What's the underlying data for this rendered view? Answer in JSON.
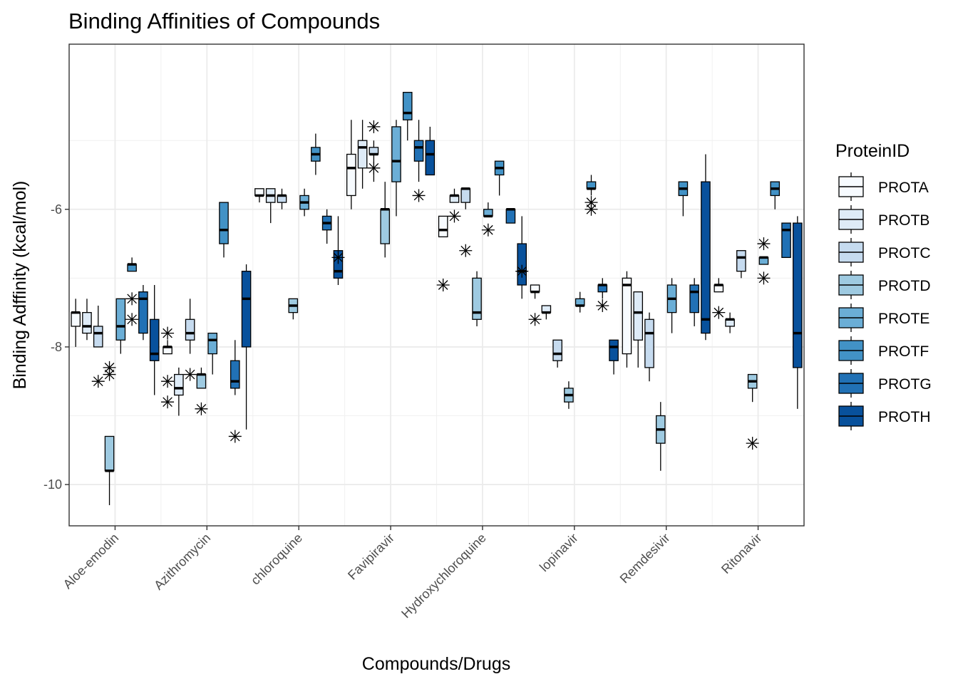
{
  "chart_data": {
    "type": "boxplot",
    "title": "Binding Affinities of Compounds",
    "xlabel": "Compounds/Drugs",
    "ylabel": "Binding Adffinity (kcal/mol)",
    "ylim": [
      -10.6,
      -3.6
    ],
    "yticks": [
      -10,
      -8,
      -6
    ],
    "grid": true,
    "legend": {
      "title": "ProteinID",
      "placement": "right",
      "entries": [
        "PROTA",
        "PROTB",
        "PROTC",
        "PROTD",
        "PROTE",
        "PROTF",
        "PROTG",
        "PROTH"
      ]
    },
    "colors": [
      "#f7fbff",
      "#deebf7",
      "#c6dbef",
      "#9ecae1",
      "#6baed6",
      "#4292c6",
      "#2171b5",
      "#08519c"
    ],
    "categories": [
      "Aloe-emodin",
      "Azithromycin",
      "chloroquine",
      "Favipiravir",
      "Hydroxychloroquine",
      "lopinavir",
      "Remdesivir",
      "Ritonavir"
    ],
    "boxes": [
      [
        {
          "min": -8.0,
          "q1": -7.7,
          "median": -7.5,
          "q3": -7.5,
          "max": -7.3,
          "outliers": []
        },
        {
          "min": -7.9,
          "q1": -7.8,
          "median": -7.7,
          "q3": -7.5,
          "max": -7.3,
          "outliers": []
        },
        {
          "min": -8.0,
          "q1": -8.0,
          "median": -7.8,
          "q3": -7.7,
          "max": -7.4,
          "outliers": [
            -8.5
          ]
        },
        {
          "min": -10.3,
          "q1": -9.8,
          "median": -9.8,
          "q3": -9.3,
          "max": -9.3,
          "outliers": [
            -8.3,
            -8.4
          ]
        },
        {
          "min": -8.1,
          "q1": -7.9,
          "median": -7.7,
          "q3": -7.3,
          "max": -7.3,
          "outliers": []
        },
        {
          "min": -6.9,
          "q1": -6.9,
          "median": -6.8,
          "q3": -6.8,
          "max": -6.7,
          "outliers": [
            -7.3,
            -7.6
          ]
        },
        {
          "min": -7.9,
          "q1": -7.8,
          "median": -7.3,
          "q3": -7.2,
          "max": -7.1,
          "outliers": []
        },
        {
          "min": -8.7,
          "q1": -8.2,
          "median": -8.1,
          "q3": -7.6,
          "max": -7.1,
          "outliers": []
        }
      ],
      [
        {
          "min": -8.1,
          "q1": -8.1,
          "median": -8.0,
          "q3": -8.0,
          "max": -7.9,
          "outliers": [
            -8.8,
            -8.5,
            -7.8
          ]
        },
        {
          "min": -9.0,
          "q1": -8.7,
          "median": -8.6,
          "q3": -8.4,
          "max": -8.3,
          "outliers": []
        },
        {
          "min": -8.1,
          "q1": -7.9,
          "median": -7.8,
          "q3": -7.6,
          "max": -7.3,
          "outliers": [
            -8.4
          ]
        },
        {
          "min": -8.6,
          "q1": -8.6,
          "median": -8.4,
          "q3": -8.4,
          "max": -8.3,
          "outliers": [
            -8.9
          ]
        },
        {
          "min": -8.4,
          "q1": -8.1,
          "median": -7.9,
          "q3": -7.8,
          "max": -7.8,
          "outliers": []
        },
        {
          "min": -6.7,
          "q1": -6.5,
          "median": -6.3,
          "q3": -5.9,
          "max": -5.9,
          "outliers": []
        },
        {
          "min": -8.7,
          "q1": -8.6,
          "median": -8.5,
          "q3": -8.2,
          "max": -7.9,
          "outliers": [
            -9.3
          ]
        },
        {
          "min": -9.2,
          "q1": -8.0,
          "median": -7.3,
          "q3": -6.9,
          "max": -6.8,
          "outliers": []
        }
      ],
      [
        {
          "min": -5.9,
          "q1": -5.8,
          "median": -5.8,
          "q3": -5.7,
          "max": -5.7,
          "outliers": []
        },
        {
          "min": -6.2,
          "q1": -5.9,
          "median": -5.8,
          "q3": -5.7,
          "max": -5.7,
          "outliers": []
        },
        {
          "min": -6.0,
          "q1": -5.9,
          "median": -5.8,
          "q3": -5.8,
          "max": -5.7,
          "outliers": []
        },
        {
          "min": -7.6,
          "q1": -7.5,
          "median": -7.4,
          "q3": -7.3,
          "max": -7.3,
          "outliers": []
        },
        {
          "min": -6.1,
          "q1": -6.0,
          "median": -5.9,
          "q3": -5.8,
          "max": -5.7,
          "outliers": []
        },
        {
          "min": -5.5,
          "q1": -5.3,
          "median": -5.2,
          "q3": -5.1,
          "max": -4.9,
          "outliers": []
        },
        {
          "min": -6.5,
          "q1": -6.3,
          "median": -6.2,
          "q3": -6.1,
          "max": -6.0,
          "outliers": []
        },
        {
          "min": -7.1,
          "q1": -7.0,
          "median": -6.9,
          "q3": -6.6,
          "max": -6.1,
          "outliers": [
            -6.7
          ]
        }
      ],
      [
        {
          "min": -6.0,
          "q1": -5.8,
          "median": -5.4,
          "q3": -5.2,
          "max": -4.7,
          "outliers": []
        },
        {
          "min": -5.7,
          "q1": -5.4,
          "median": -5.1,
          "q3": -5.0,
          "max": -4.7,
          "outliers": []
        },
        {
          "min": -5.6,
          "q1": -5.2,
          "median": -5.2,
          "q3": -5.1,
          "max": -5.0,
          "outliers": [
            -4.8,
            -5.4
          ]
        },
        {
          "min": -6.7,
          "q1": -6.5,
          "median": -6.0,
          "q3": -6.0,
          "max": -5.6,
          "outliers": []
        },
        {
          "min": -6.1,
          "q1": -5.6,
          "median": -5.3,
          "q3": -4.8,
          "max": -4.7,
          "outliers": []
        },
        {
          "min": -5.0,
          "q1": -4.7,
          "median": -4.6,
          "q3": -4.3,
          "max": -4.3,
          "outliers": []
        },
        {
          "min": -5.6,
          "q1": -5.3,
          "median": -5.1,
          "q3": -5.0,
          "max": -4.7,
          "outliers": [
            -5.8
          ]
        },
        {
          "min": -5.5,
          "q1": -5.5,
          "median": -5.2,
          "q3": -5.0,
          "max": -4.8,
          "outliers": []
        }
      ],
      [
        {
          "min": -6.4,
          "q1": -6.4,
          "median": -6.3,
          "q3": -6.1,
          "max": -6.1,
          "outliers": [
            -7.1
          ]
        },
        {
          "min": -5.9,
          "q1": -5.9,
          "median": -5.8,
          "q3": -5.8,
          "max": -5.7,
          "outliers": [
            -6.1
          ]
        },
        {
          "min": -6.0,
          "q1": -5.9,
          "median": -5.7,
          "q3": -5.7,
          "max": -5.7,
          "outliers": [
            -6.6
          ]
        },
        {
          "min": -7.7,
          "q1": -7.6,
          "median": -7.5,
          "q3": -7.0,
          "max": -6.9,
          "outliers": []
        },
        {
          "min": -6.1,
          "q1": -6.1,
          "median": -6.1,
          "q3": -6.0,
          "max": -5.9,
          "outliers": [
            -6.3
          ]
        },
        {
          "min": -5.8,
          "q1": -5.5,
          "median": -5.4,
          "q3": -5.3,
          "max": -5.3,
          "outliers": []
        },
        {
          "min": -6.2,
          "q1": -6.2,
          "median": -6.0,
          "q3": -6.0,
          "max": -6.0,
          "outliers": []
        },
        {
          "min": -7.3,
          "q1": -7.1,
          "median": -6.9,
          "q3": -6.5,
          "max": -6.1,
          "outliers": [
            -6.9
          ]
        }
      ],
      [
        {
          "min": -7.3,
          "q1": -7.2,
          "median": -7.2,
          "q3": -7.1,
          "max": -7.1,
          "outliers": [
            -7.6
          ]
        },
        {
          "min": -7.6,
          "q1": -7.5,
          "median": -7.5,
          "q3": -7.4,
          "max": -7.4,
          "outliers": []
        },
        {
          "min": -8.3,
          "q1": -8.2,
          "median": -8.1,
          "q3": -7.9,
          "max": -7.9,
          "outliers": []
        },
        {
          "min": -8.9,
          "q1": -8.8,
          "median": -8.7,
          "q3": -8.6,
          "max": -8.5,
          "outliers": []
        },
        {
          "min": -7.5,
          "q1": -7.4,
          "median": -7.4,
          "q3": -7.3,
          "max": -7.2,
          "outliers": []
        },
        {
          "min": -5.8,
          "q1": -5.7,
          "median": -5.7,
          "q3": -5.6,
          "max": -5.5,
          "outliers": [
            -5.9,
            -6.0
          ]
        },
        {
          "min": -7.3,
          "q1": -7.2,
          "median": -7.1,
          "q3": -7.1,
          "max": -7.0,
          "outliers": [
            -7.4
          ]
        },
        {
          "min": -8.4,
          "q1": -8.2,
          "median": -8.0,
          "q3": -7.9,
          "max": -7.9,
          "outliers": []
        }
      ],
      [
        {
          "min": -8.3,
          "q1": -8.1,
          "median": -7.1,
          "q3": -7.0,
          "max": -6.9,
          "outliers": []
        },
        {
          "min": -8.3,
          "q1": -7.9,
          "median": -7.5,
          "q3": -7.2,
          "max": -7.2,
          "outliers": []
        },
        {
          "min": -8.5,
          "q1": -8.3,
          "median": -7.8,
          "q3": -7.6,
          "max": -7.5,
          "outliers": []
        },
        {
          "min": -9.8,
          "q1": -9.4,
          "median": -9.2,
          "q3": -9.0,
          "max": -8.8,
          "outliers": []
        },
        {
          "min": -7.8,
          "q1": -7.5,
          "median": -7.3,
          "q3": -7.1,
          "max": -7.0,
          "outliers": []
        },
        {
          "min": -6.1,
          "q1": -5.8,
          "median": -5.7,
          "q3": -5.6,
          "max": -5.6,
          "outliers": []
        },
        {
          "min": -7.7,
          "q1": -7.5,
          "median": -7.2,
          "q3": -7.1,
          "max": -7.0,
          "outliers": []
        },
        {
          "min": -7.9,
          "q1": -7.8,
          "median": -7.6,
          "q3": -5.6,
          "max": -5.2,
          "outliers": []
        }
      ],
      [
        {
          "min": -7.2,
          "q1": -7.2,
          "median": -7.1,
          "q3": -7.1,
          "max": -7.0,
          "outliers": [
            -7.5
          ]
        },
        {
          "min": -7.8,
          "q1": -7.7,
          "median": -7.6,
          "q3": -7.6,
          "max": -7.5,
          "outliers": []
        },
        {
          "min": -7.0,
          "q1": -6.9,
          "median": -6.7,
          "q3": -6.6,
          "max": -6.6,
          "outliers": []
        },
        {
          "min": -8.8,
          "q1": -8.6,
          "median": -8.5,
          "q3": -8.4,
          "max": -8.4,
          "outliers": [
            -9.4
          ]
        },
        {
          "min": -6.8,
          "q1": -6.8,
          "median": -6.7,
          "q3": -6.7,
          "max": -6.7,
          "outliers": [
            -6.5,
            -7.0
          ]
        },
        {
          "min": -6.0,
          "q1": -5.8,
          "median": -5.7,
          "q3": -5.6,
          "max": -5.6,
          "outliers": []
        },
        {
          "min": -6.7,
          "q1": -6.7,
          "median": -6.3,
          "q3": -6.2,
          "max": -6.2,
          "outliers": []
        },
        {
          "min": -8.9,
          "q1": -8.3,
          "median": -7.8,
          "q3": -6.2,
          "max": -6.1,
          "outliers": []
        }
      ]
    ]
  }
}
